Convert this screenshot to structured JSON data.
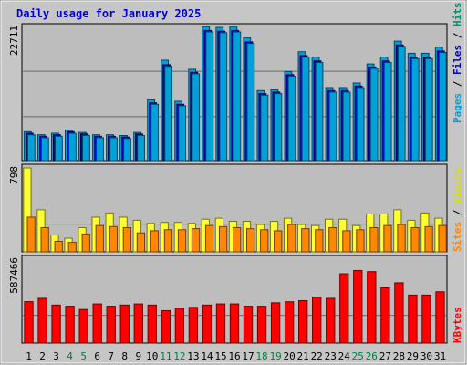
{
  "chart_data": {
    "type": "bar",
    "title": "Daily usage for January 2025",
    "categories": [
      "1",
      "2",
      "3",
      "4",
      "5",
      "6",
      "7",
      "8",
      "9",
      "10",
      "11",
      "12",
      "13",
      "14",
      "15",
      "16",
      "17",
      "18",
      "19",
      "20",
      "21",
      "22",
      "23",
      "24",
      "25",
      "26",
      "27",
      "28",
      "29",
      "30",
      "31"
    ],
    "weekend_days": [
      "4",
      "5",
      "11",
      "12",
      "18",
      "19",
      "25",
      "26"
    ],
    "panels": [
      {
        "id": "top",
        "ymax": 22711,
        "ymax_label": "22711",
        "legend": [
          {
            "text": "Pages",
            "color": "#00a0d8"
          },
          {
            "text": "Files",
            "color": "#0000cc"
          },
          {
            "text": "Hits",
            "color": "#009070"
          }
        ],
        "series": [
          {
            "name": "Hits",
            "color": "#00a0d8",
            "values": [
              4930,
              4410,
              4670,
              5190,
              4800,
              4410,
              4410,
              4280,
              4800,
              10370,
              17120,
              10120,
              15570,
              22840,
              22710,
              22840,
              20900,
              11930,
              12060,
              15180,
              18550,
              17640,
              12450,
              12450,
              13230,
              16470,
              17640,
              20360,
              18290,
              18290,
              19330
            ]
          },
          {
            "name": "Files",
            "color": "#0000cc",
            "values": [
              4670,
              4150,
              4410,
              4930,
              4540,
              4150,
              4150,
              4020,
              4540,
              9850,
              16340,
              9600,
              15050,
              22190,
              22060,
              22190,
              20240,
              11410,
              11670,
              14660,
              17900,
              16990,
              11930,
              11930,
              12710,
              15960,
              16990,
              19710,
              17640,
              17640,
              18680
            ]
          },
          {
            "name": "Pages",
            "color": "#00a0d8",
            "values": [
              4400,
              3900,
              4150,
              4650,
              4300,
              3900,
              3900,
              3760,
              4280,
              9600,
              16080,
              9340,
              14790,
              21930,
              21800,
              21930,
              19970,
              11150,
              11410,
              14400,
              17640,
              16730,
              11670,
              11670,
              12450,
              15700,
              16730,
              19460,
              17380,
              17380,
              18420
            ]
          }
        ]
      },
      {
        "id": "middle",
        "ymax": 798,
        "ymax_label": "798",
        "legend": [
          {
            "text": "Sites",
            "color": "#ff8800"
          },
          {
            "text": "Visits",
            "color": "#eeee00"
          }
        ],
        "series": [
          {
            "name": "Visits",
            "color": "#ffff33",
            "values": [
              798,
              400,
              160,
              130,
              230,
              330,
              370,
              330,
              300,
              270,
              280,
              280,
              270,
              310,
              320,
              290,
              290,
              260,
              290,
              320,
              260,
              250,
              310,
              310,
              250,
              360,
              360,
              400,
              300,
              370,
              320
            ]
          },
          {
            "name": "Sites",
            "color": "#ff8800",
            "values": [
              330,
              230,
              100,
              90,
              170,
              250,
              240,
              230,
              180,
              200,
              210,
              210,
              220,
              250,
              240,
              230,
              220,
              210,
              200,
              260,
              220,
              210,
              230,
              200,
              210,
              230,
              250,
              260,
              230,
              240,
              250
            ]
          }
        ]
      },
      {
        "id": "bottom",
        "ymax": 587466,
        "ymax_label": "587466",
        "legend": [
          {
            "text": "KBytes",
            "color": "#ff0000"
          }
        ],
        "series": [
          {
            "name": "KBytes",
            "color": "#ff0000",
            "values": [
              290000,
              313000,
              266000,
              258000,
              235000,
              274000,
              258000,
              266000,
              274000,
              266000,
              227000,
              243000,
              250000,
              266000,
              274000,
              274000,
              258000,
              258000,
              282000,
              289000,
              297000,
              320000,
              313000,
              485000,
              508000,
              500000,
              387000,
              422000,
              336000,
              336000,
              359000
            ]
          }
        ]
      }
    ]
  }
}
